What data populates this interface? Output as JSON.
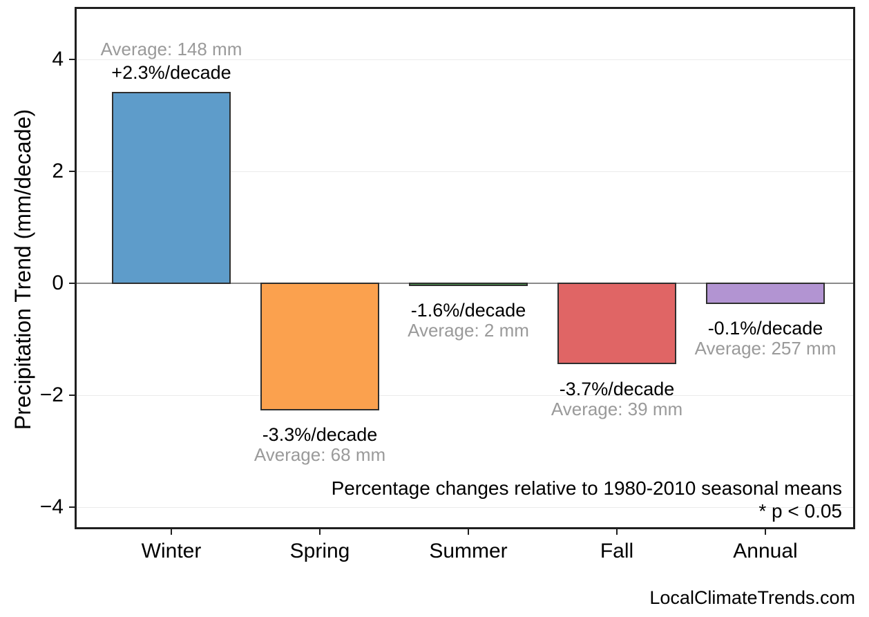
{
  "chart_data": {
    "type": "bar",
    "title": "",
    "categories": [
      "Winter",
      "Spring",
      "Summer",
      "Fall",
      "Annual"
    ],
    "values": [
      3.4,
      -2.25,
      -0.03,
      -1.43,
      -0.35
    ],
    "value_unit": "mm/decade",
    "series": [
      {
        "category": "Winter",
        "trend_mm_per_decade": 3.4,
        "pct_label": "+2.3%/decade",
        "avg_label": "Average: 148 mm",
        "color": "#5E9CCA"
      },
      {
        "category": "Spring",
        "trend_mm_per_decade": -2.25,
        "pct_label": "-3.3%/decade",
        "avg_label": "Average: 68 mm",
        "color": "#FBA14E"
      },
      {
        "category": "Summer",
        "trend_mm_per_decade": -0.03,
        "pct_label": "-1.6%/decade",
        "avg_label": "Average: 2 mm",
        "color": "#4D9A50"
      },
      {
        "category": "Fall",
        "trend_mm_per_decade": -1.43,
        "pct_label": "-3.7%/decade",
        "avg_label": "Average: 39 mm",
        "color": "#E06565"
      },
      {
        "category": "Annual",
        "trend_mm_per_decade": -0.35,
        "pct_label": "-0.1%/decade",
        "avg_label": "Average: 257 mm",
        "color": "#B294D2"
      }
    ],
    "bar_colors": [
      "#5E9CCA",
      "#FBA14E",
      "#4D9A50",
      "#E06565",
      "#B294D2"
    ],
    "bar_edge_color": "#2E2E2E",
    "pct_labels": [
      "+2.3%/decade",
      "-3.3%/decade",
      "-1.6%/decade",
      "-3.7%/decade",
      "-0.1%/decade"
    ],
    "avg_labels": [
      "Average: 148 mm",
      "Average: 68 mm",
      "Average: 2 mm",
      "Average: 39 mm",
      "Average: 257 mm"
    ],
    "xlabel": "",
    "ylabel": "Precipitation Trend (mm/decade)",
    "yticks": [
      4,
      2,
      0,
      -2,
      -4
    ],
    "ytick_labels": [
      "4",
      "2",
      "0",
      "−2",
      "−4"
    ],
    "ylim": [
      -4.4,
      4.9
    ],
    "grid": "horizontal-light",
    "zero_line": true,
    "legend_position": "none",
    "annotations": {
      "note_line1": "Percentage changes relative to 1980-2010 seasonal means",
      "note_line2": "* p < 0.05"
    },
    "watermark": "LocalClimateTrends.com",
    "colors": {
      "gridline": "#EBEBEB",
      "zero_line": "#8A8A8A",
      "axis_border": "#1F1F1F",
      "pct_text": "#000000",
      "avg_text": "#9A9A9A"
    }
  }
}
